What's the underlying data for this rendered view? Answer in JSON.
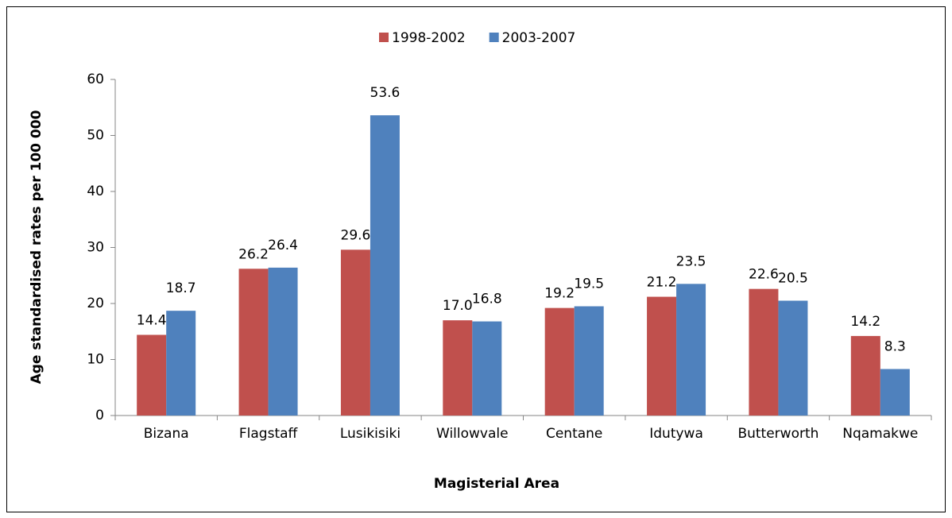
{
  "chart_data": {
    "type": "bar",
    "x_label": "Magisterial Area",
    "y_label": "Age standardised rates  per 100 000",
    "categories": [
      "Bizana",
      "Flagstaff",
      "Lusikisiki",
      "Willowvale",
      "Centane",
      "Idutywa",
      "Butterworth",
      "Nqamakwe"
    ],
    "series": [
      {
        "name": "1998-2002",
        "color": "#c0504d",
        "values": [
          14.4,
          26.2,
          29.6,
          17.0,
          19.2,
          21.2,
          22.6,
          14.2
        ],
        "value_labels": [
          "14.4",
          "26.2",
          "29.6",
          "17.0",
          "19.2",
          "21.2",
          "22.6",
          "14.2"
        ]
      },
      {
        "name": "2003-2007",
        "color": "#4f81bd",
        "values": [
          18.7,
          26.4,
          53.6,
          16.8,
          19.5,
          23.5,
          20.5,
          8.3
        ],
        "value_labels": [
          "18.7",
          "26.4",
          "53.6",
          "16.8",
          "19.5",
          "23.5",
          "20.5",
          "8.3"
        ]
      }
    ],
    "ylim": [
      0,
      60
    ],
    "yticks": [
      0,
      10,
      20,
      30,
      40,
      50,
      60
    ],
    "grid": false,
    "legend": "top"
  }
}
